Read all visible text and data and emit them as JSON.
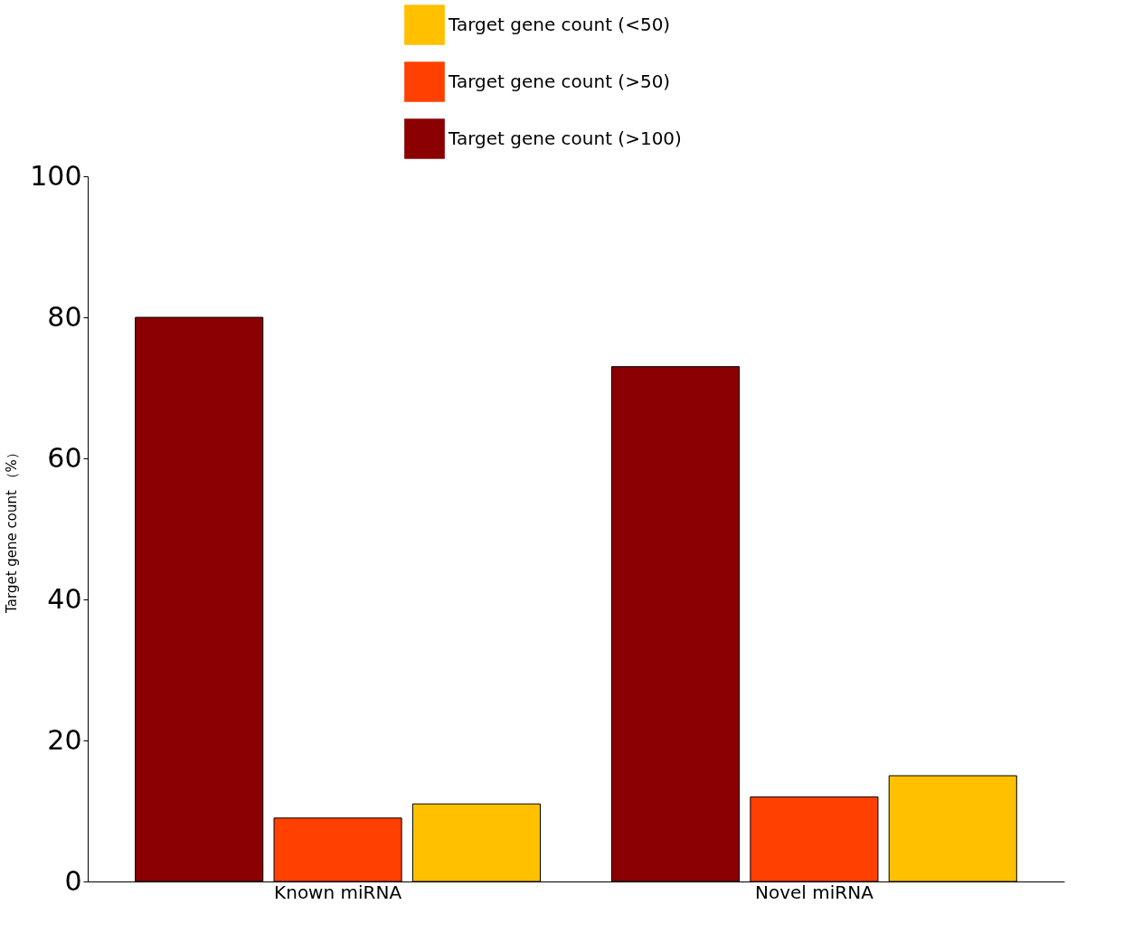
{
  "chart_data": {
    "type": "bar",
    "ylabel": "Target gene count （%）",
    "categories": [
      "Known miRNA",
      "Novel miRNA"
    ],
    "series": [
      {
        "name": "Target gene count (>100)",
        "color": "#8b0000",
        "values": [
          80,
          73
        ]
      },
      {
        "name": "Target gene count (>50)",
        "color": "#ff4000",
        "values": [
          9,
          12
        ]
      },
      {
        "name": "Target gene count (<50)",
        "color": "#ffc000",
        "values": [
          11,
          15
        ]
      }
    ],
    "ylim": [
      0,
      100
    ],
    "yticks": [
      0,
      20,
      40,
      60,
      80,
      100
    ],
    "grid": false,
    "legend": "top"
  }
}
